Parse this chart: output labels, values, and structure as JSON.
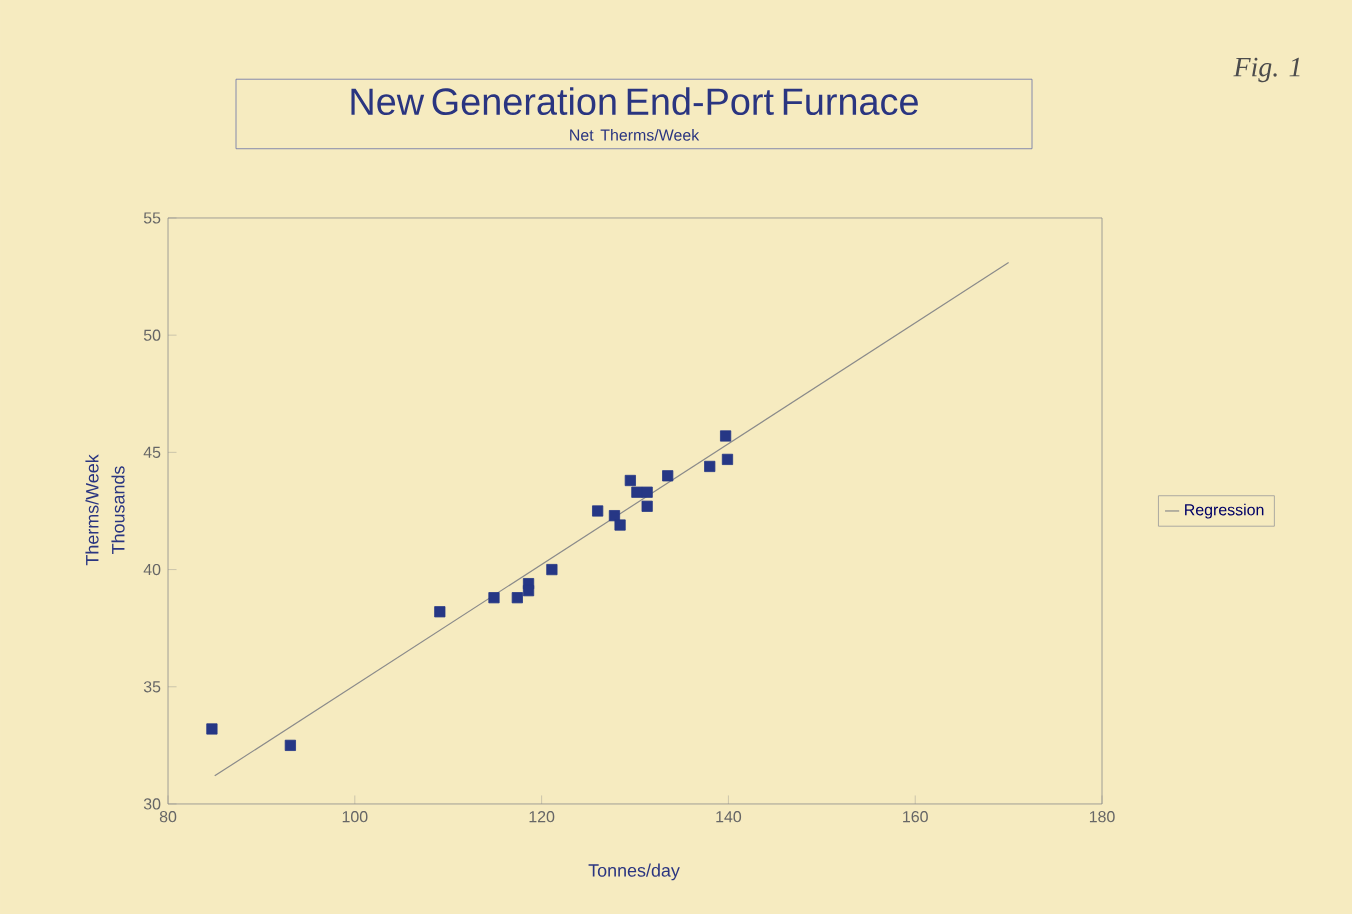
{
  "chart_data": {
    "type": "scatter",
    "title": "New Generation End-Port Furnace",
    "subtitle": "Net Therms/Week",
    "xlabel": "Tonnes/day",
    "ylabel": "Therms/Week",
    "annotations": [
      "Thousands",
      "Fig. 1"
    ],
    "xlim": [
      80,
      180
    ],
    "xticks": [
      80,
      100,
      120,
      140,
      160,
      180
    ],
    "ylim": [
      30,
      55
    ],
    "yticks": [
      30,
      35,
      40,
      45,
      50,
      55
    ],
    "grid": false,
    "legend": "right",
    "marker": "square",
    "series": [
      {
        "color": "#263785",
        "x": [
          84.7,
          93.1,
          109.1,
          114.9,
          117.4,
          118.6,
          118.6,
          121.1,
          126.0,
          127.8,
          128.4,
          129.5,
          130.2,
          131.3,
          131.3,
          133.5,
          138.0,
          139.7,
          139.9
        ],
        "values": [
          33.2,
          32.5,
          38.2,
          38.8,
          38.8,
          39.4,
          39.1,
          40.0,
          42.5,
          42.3,
          41.9,
          43.8,
          43.3,
          43.3,
          42.7,
          44.0,
          44.4,
          45.7,
          44.7
        ]
      },
      {
        "type": "line",
        "name": "Regression",
        "color": "#8a8a8a",
        "marker": "none",
        "line_style": "solid",
        "x": [
          85,
          170
        ],
        "values": [
          31.2,
          53.1
        ]
      }
    ]
  }
}
